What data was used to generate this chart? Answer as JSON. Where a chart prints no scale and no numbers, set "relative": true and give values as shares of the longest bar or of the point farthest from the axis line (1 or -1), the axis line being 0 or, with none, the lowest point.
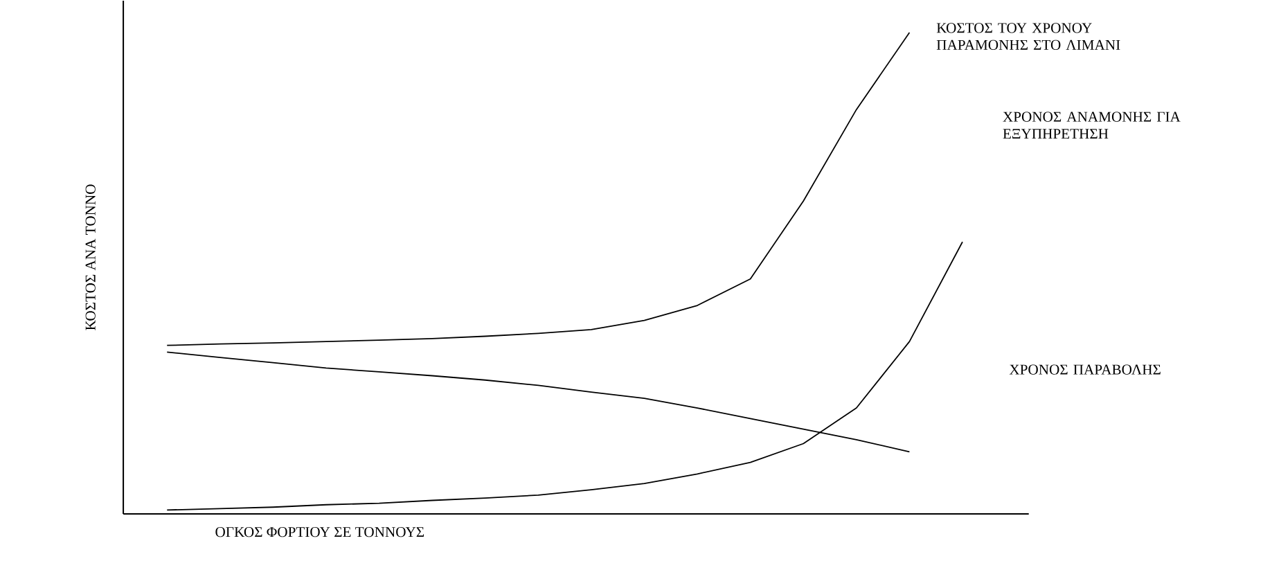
{
  "chart_data": {
    "type": "line",
    "relative": true,
    "xlabel": "ΟΓΚΟΣ ΦΟΡΤΙΟΥ ΣΕ ΤΟΝΝΟΥΣ",
    "ylabel": "ΚΟΣΤΟΣ ΑΝΑ ΤΟΝΝΟ",
    "categories": [
      null,
      null,
      null,
      null,
      null,
      null,
      null,
      null,
      null,
      null,
      null,
      null,
      null,
      null,
      null,
      null,
      null
    ],
    "series": [
      {
        "name": "ΚΟΣΤΟΣ ΤΟΥ ΧΡΟΝΟΥ ΠΑΡΑΜΟΝΗΣ ΣΤΟ ΛΙΜΑΝΙ",
        "color": "#000000",
        "values": [
          0.35,
          0.353,
          0.355,
          0.358,
          0.361,
          0.364,
          0.369,
          0.375,
          0.383,
          0.402,
          0.433,
          0.488,
          0.65,
          0.84,
          1,
          null,
          null
        ]
      },
      {
        "name": "ΧΡΟΝΟΣ ΑΝΑΜΟΝΗΣ ΓΙΑ ΕΞΥΠΗΡΕΤΗΣΗ",
        "color": "#000000",
        "values": [
          0.008,
          0.011,
          0.014,
          0.019,
          0.022,
          0.028,
          0.033,
          0.039,
          0.05,
          0.063,
          0.083,
          0.107,
          0.146,
          0.22,
          0.358,
          0.565,
          null
        ]
      },
      {
        "name": "ΧΡΟΝΟΣ ΠΑΡΑΒΟΛΗΣ",
        "color": "#000000",
        "values": [
          0.336,
          0.325,
          0.314,
          0.303,
          0.295,
          0.287,
          0.278,
          0.267,
          0.253,
          0.24,
          0.22,
          0.198,
          0.176,
          0.154,
          0.129,
          null,
          null
        ]
      }
    ],
    "grid": false,
    "legend": false,
    "line_style": "solid",
    "marker": "none"
  }
}
